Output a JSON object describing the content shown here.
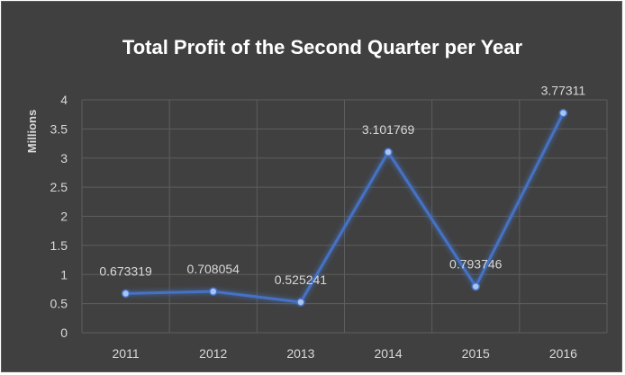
{
  "chart_data": {
    "type": "line",
    "title": "Total Profit of the Second Quarter per Year",
    "xlabel": "",
    "ylabel": "Millions",
    "categories": [
      "2011",
      "2012",
      "2013",
      "2014",
      "2015",
      "2016"
    ],
    "series": [
      {
        "values": [
          0.673319,
          0.708054,
          0.525241,
          3.101769,
          0.793746,
          3.77311
        ],
        "labels": [
          "0.673319",
          "0.708054",
          "0.525241",
          "3.101769",
          "0.793746",
          "3.77311"
        ],
        "color": "#4472c4"
      }
    ],
    "ylim": [
      0,
      4
    ],
    "yticks": [
      "0",
      "0.5",
      "1",
      "1.5",
      "2",
      "2.5",
      "3",
      "3.5",
      "4"
    ],
    "grid": true,
    "legend": "none",
    "background": "#404040"
  }
}
